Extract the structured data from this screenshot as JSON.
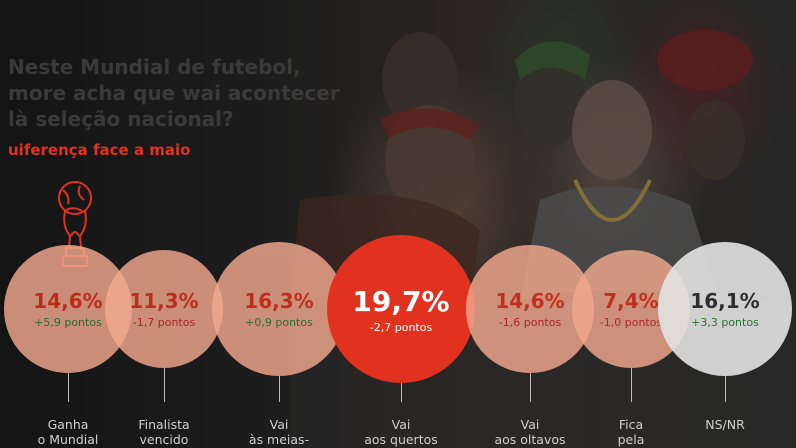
{
  "title_lines": [
    "Neste Mundial de futebol,",
    "more acha que wai acontecer",
    "là seleção nacional?"
  ],
  "subtitle": "uiferença face a maio",
  "icons": {
    "trophy": "world-cup-trophy-icon"
  },
  "colors": {
    "accent_red": "#e0321f",
    "bubble_peach": "#f2a98e",
    "bubble_highlight": "#e0321f",
    "bubble_neutral": "#e3e3e3",
    "positive_delta": "#2e7d32",
    "negative_delta": "#c62828"
  },
  "chart_data": {
    "type": "bubble",
    "unit": "%",
    "categories": [
      {
        "key": "ganha",
        "label_lines": [
          "Ganha",
          "o Mundial"
        ],
        "value": 14.6,
        "value_label": "14,6%",
        "change": 5.9,
        "change_label": "+5,9 pontos"
      },
      {
        "key": "finalista",
        "label_lines": [
          "Finalista",
          "vencido"
        ],
        "value": 11.3,
        "value_label": "11,3%",
        "change": -1.7,
        "change_label": "-1,7 pontos"
      },
      {
        "key": "meias",
        "label_lines": [
          "Vai",
          "às meias-"
        ],
        "value": 16.3,
        "value_label": "16,3%",
        "change": 0.9,
        "change_label": "+0,9 pontos"
      },
      {
        "key": "quartos",
        "label_lines": [
          "Vai",
          "aos quertos"
        ],
        "value": 19.7,
        "value_label": "19,7%",
        "change": -2.7,
        "change_label": "-2,7 pontos"
      },
      {
        "key": "oitavos",
        "label_lines": [
          "Vai",
          "aos oltavos"
        ],
        "value": 14.6,
        "value_label": "14,6%",
        "change": -1.6,
        "change_label": "-1,6 pontos"
      },
      {
        "key": "fica",
        "label_lines": [
          "Fica",
          "pela"
        ],
        "value": 7.4,
        "value_label": "7,4%",
        "change": -1.0,
        "change_label": "-1,0 pontos"
      },
      {
        "key": "nsnr",
        "label_lines": [
          "NS/NR"
        ],
        "value": 16.1,
        "value_label": "16,1%",
        "change": 3.3,
        "change_label": "+3,3 pontos"
      }
    ]
  }
}
